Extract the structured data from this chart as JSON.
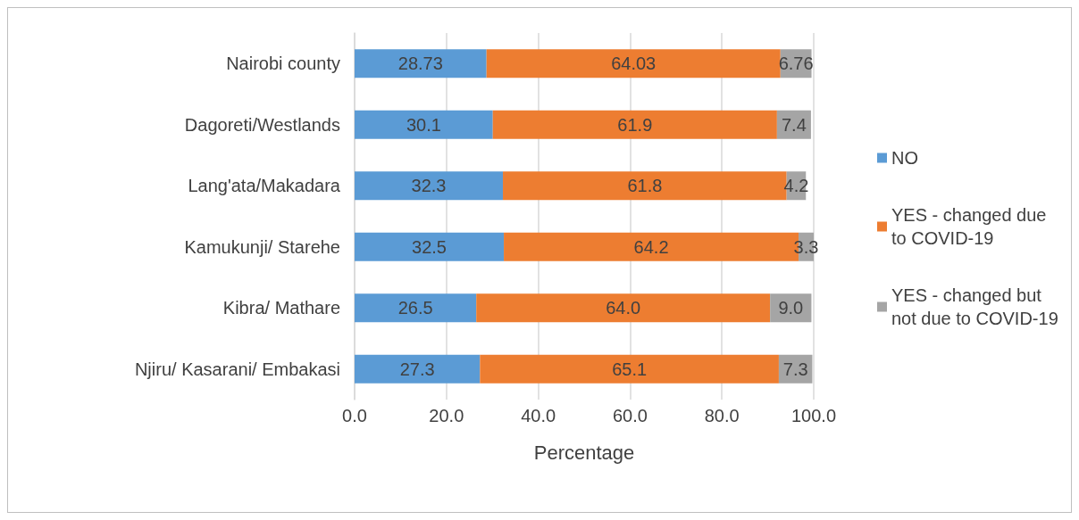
{
  "chart_data": {
    "type": "bar",
    "orientation": "horizontal",
    "stacked": true,
    "xlabel": "Percentage",
    "categories": [
      "Nairobi county",
      "Dagoreti/Westlands",
      "Lang'ata/Makadara",
      "Kamukunji/ Starehe",
      "Kibra/ Mathare",
      "Njiru/ Kasarani/ Embakasi"
    ],
    "series": [
      {
        "name": "NO",
        "color": "#5b9bd5",
        "values": [
          28.73,
          30.1,
          32.3,
          32.5,
          26.5,
          27.3
        ],
        "value_labels": [
          "28.73",
          "30.1",
          "32.3",
          "32.5",
          "26.5",
          "27.3"
        ]
      },
      {
        "name": "YES - changed due to COVID-19",
        "color": "#ed7d31",
        "values": [
          64.03,
          61.9,
          61.8,
          64.2,
          64.0,
          65.1
        ],
        "value_labels": [
          "64.03",
          "61.9",
          "61.8",
          "64.2",
          "64.0",
          "65.1"
        ]
      },
      {
        "name": "YES - changed but not due to COVID-19",
        "color": "#a5a5a5",
        "values": [
          6.76,
          7.4,
          4.2,
          3.3,
          9.0,
          7.3
        ],
        "value_labels": [
          "6.76",
          "7.4",
          "4.2",
          "3.3",
          "9.0",
          "7.3"
        ]
      }
    ],
    "xlim": [
      0,
      100
    ],
    "xticks": [
      {
        "value": 0,
        "label": "0.0"
      },
      {
        "value": 20,
        "label": "20.0"
      },
      {
        "value": 40,
        "label": "40.0"
      },
      {
        "value": 60,
        "label": "60.0"
      },
      {
        "value": 80,
        "label": "80.0"
      },
      {
        "value": 100,
        "label": "100.0"
      }
    ],
    "grid": "x",
    "legend": "right"
  }
}
